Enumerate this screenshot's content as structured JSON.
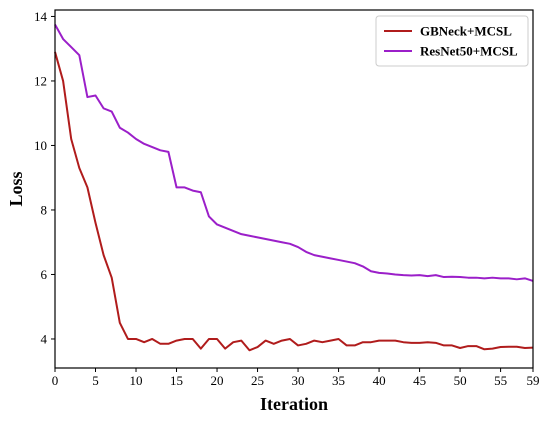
{
  "chart_data": {
    "type": "line",
    "title": "",
    "xlabel": "Iteration",
    "ylabel": "Loss",
    "xlim": [
      0,
      59
    ],
    "ylim": [
      3.1,
      14.2
    ],
    "xticks": [
      0,
      5,
      10,
      15,
      20,
      25,
      30,
      35,
      40,
      45,
      50,
      55,
      59
    ],
    "yticks": [
      4,
      6,
      8,
      10,
      12,
      14
    ],
    "grid": false,
    "legend_position": "top-right",
    "x": [
      0,
      1,
      2,
      3,
      4,
      5,
      6,
      7,
      8,
      9,
      10,
      11,
      12,
      13,
      14,
      15,
      16,
      17,
      18,
      19,
      20,
      21,
      22,
      23,
      24,
      25,
      26,
      27,
      28,
      29,
      30,
      31,
      32,
      33,
      34,
      35,
      36,
      37,
      38,
      39,
      40,
      41,
      42,
      43,
      44,
      45,
      46,
      47,
      48,
      49,
      50,
      51,
      52,
      53,
      54,
      55,
      56,
      57,
      58,
      59
    ],
    "series": [
      {
        "name": "GBNeck+MCSL",
        "color": "#b01c1c",
        "values": [
          12.9,
          12.0,
          10.2,
          9.3,
          8.7,
          7.6,
          6.6,
          5.9,
          4.5,
          4.0,
          4.0,
          3.9,
          4.0,
          3.85,
          3.85,
          3.95,
          4.0,
          4.0,
          3.7,
          4.0,
          4.0,
          3.7,
          3.9,
          3.95,
          3.65,
          3.75,
          3.95,
          3.85,
          3.95,
          4.0,
          3.8,
          3.85,
          3.95,
          3.9,
          3.95,
          4.0,
          3.8,
          3.8,
          3.9,
          3.9,
          3.95,
          3.95,
          3.95,
          3.9,
          3.88,
          3.88,
          3.9,
          3.88,
          3.8,
          3.8,
          3.72,
          3.78,
          3.78,
          3.68,
          3.7,
          3.75,
          3.76,
          3.76,
          3.72,
          3.73
        ]
      },
      {
        "name": "ResNet50+MCSL",
        "color": "#9b1fc9",
        "values": [
          13.75,
          13.3,
          13.05,
          12.8,
          11.5,
          11.55,
          11.15,
          11.05,
          10.55,
          10.4,
          10.2,
          10.05,
          9.95,
          9.85,
          9.8,
          8.7,
          8.7,
          8.6,
          8.55,
          7.8,
          7.55,
          7.45,
          7.35,
          7.25,
          7.2,
          7.15,
          7.1,
          7.05,
          7.0,
          6.95,
          6.85,
          6.7,
          6.6,
          6.55,
          6.5,
          6.45,
          6.4,
          6.35,
          6.25,
          6.1,
          6.05,
          6.03,
          6.0,
          5.98,
          5.97,
          5.98,
          5.95,
          5.98,
          5.92,
          5.93,
          5.92,
          5.9,
          5.9,
          5.88,
          5.9,
          5.88,
          5.88,
          5.85,
          5.88,
          5.8
        ]
      }
    ]
  }
}
